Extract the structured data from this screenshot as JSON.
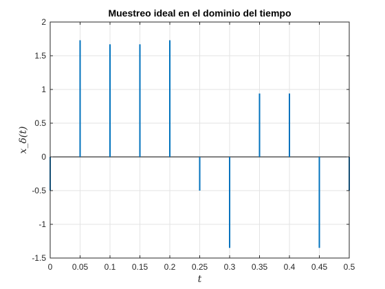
{
  "chart_data": {
    "type": "stem",
    "title": "Muestreo ideal en el dominio del tiempo",
    "xlabel": "t",
    "ylabel": "x_δ(t)",
    "xlim": [
      0,
      0.5
    ],
    "ylim": [
      -1.5,
      2
    ],
    "grid": true,
    "x": [
      0,
      0.05,
      0.1,
      0.15,
      0.2,
      0.25,
      0.3,
      0.35,
      0.4,
      0.45,
      0.5
    ],
    "values": [
      -0.5,
      1.73,
      1.67,
      1.67,
      1.73,
      -0.5,
      -1.35,
      0.94,
      0.94,
      -1.35,
      -0.5
    ],
    "xticks": [
      0,
      0.05,
      0.1,
      0.15,
      0.2,
      0.25,
      0.3,
      0.35,
      0.4,
      0.45,
      0.5
    ],
    "xtick_labels": [
      "0",
      "0.05",
      "0.1",
      "0.15",
      "0.2",
      "0.25",
      "0.3",
      "0.35",
      "0.4",
      "0.45",
      "0.5"
    ],
    "yticks": [
      -1.5,
      -1,
      -0.5,
      0,
      0.5,
      1,
      1.5,
      2
    ],
    "ytick_labels": [
      "-1.5",
      "-1",
      "-0.5",
      "0",
      "0.5",
      "1",
      "1.5",
      "2"
    ],
    "colors": {
      "stem": "#0072BD",
      "baseline": "#000000",
      "grid": "#e3e3e3",
      "axes": "#262626"
    }
  }
}
